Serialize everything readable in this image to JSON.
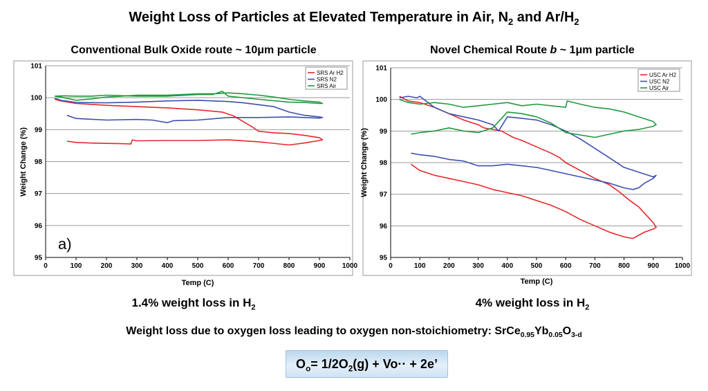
{
  "title": {
    "pre": "Weight Loss of Particles at Elevated Temperature in Air, N",
    "sub1": "2",
    "mid": " and Ar/H",
    "sub2": "2"
  },
  "left_subtitle": "Conventional Bulk Oxide route ~ 10μm particle",
  "right_subtitle": {
    "pre": "Novel Chemical Route ",
    "italic": "b",
    "post": " ~ 1μm particle"
  },
  "left_caption": {
    "text": "1.4% weight loss in H",
    "sub": "2"
  },
  "right_caption": {
    "text": "4% weight loss in H",
    "sub": "2"
  },
  "note": {
    "text": "Weight loss due to oxygen loss leading to oxygen non-stoichiometry: SrCe",
    "s1": "0.95",
    "m1": "Yb",
    "s2": "0.05",
    "m2": "O",
    "s3": "3-d"
  },
  "equation": {
    "p1": "O",
    "s1": "o",
    "p2": "= 1/2O",
    "s2": "2",
    "p3": "(g) + Vo·· + 2e’"
  },
  "chart_data": [
    {
      "type": "line",
      "panel_label": "a)",
      "xlabel": "Temp (C)",
      "ylabel": "Weight Change (%)",
      "xlim": [
        0,
        1000
      ],
      "ylim": [
        95,
        101
      ],
      "xticks": [
        0,
        100,
        200,
        300,
        400,
        500,
        600,
        700,
        800,
        900,
        1000
      ],
      "yticks": [
        95,
        96,
        97,
        98,
        99,
        100,
        101
      ],
      "grid": true,
      "legend_position": "top-right",
      "series": [
        {
          "name": "SRS Ar H2",
          "color": "#e8262b",
          "x": [
            30,
            50,
            100,
            200,
            300,
            400,
            500,
            580,
            620,
            650,
            680,
            700,
            750,
            800,
            850,
            900,
            910,
            900,
            850,
            800,
            700,
            600,
            500,
            400,
            300,
            285,
            280,
            250,
            200,
            150,
            100,
            70
          ],
          "y": [
            99.95,
            99.9,
            99.82,
            99.76,
            99.72,
            99.68,
            99.62,
            99.55,
            99.42,
            99.25,
            99.08,
            98.95,
            98.9,
            98.88,
            98.82,
            98.75,
            98.68,
            98.66,
            98.58,
            98.52,
            98.62,
            98.68,
            98.66,
            98.66,
            98.65,
            98.68,
            98.55,
            98.56,
            98.57,
            98.58,
            98.6,
            98.64
          ]
        },
        {
          "name": "SRS N2",
          "color": "#3b4fae",
          "x": [
            30,
            50,
            100,
            200,
            300,
            400,
            500,
            600,
            650,
            700,
            750,
            800,
            850,
            900,
            910,
            900,
            850,
            800,
            700,
            600,
            500,
            420,
            400,
            350,
            300,
            200,
            100,
            70
          ],
          "y": [
            99.98,
            99.92,
            99.85,
            99.84,
            99.86,
            99.9,
            99.92,
            99.88,
            99.84,
            99.78,
            99.72,
            99.55,
            99.45,
            99.4,
            99.38,
            99.36,
            99.38,
            99.4,
            99.38,
            99.38,
            99.3,
            99.28,
            99.22,
            99.3,
            99.32,
            99.3,
            99.35,
            99.45
          ]
        },
        {
          "name": "SRS Air",
          "color": "#1f9a3c",
          "x": [
            30,
            50,
            100,
            150,
            200,
            250,
            300,
            350,
            400,
            450,
            500,
            550,
            600,
            650,
            700,
            750,
            800,
            850,
            900,
            910,
            900,
            850,
            800,
            700,
            600,
            580,
            550,
            500,
            400,
            300,
            200,
            150,
            100,
            60,
            30
          ],
          "y": [
            100.05,
            100.02,
            99.92,
            99.96,
            100.02,
            100.05,
            100.08,
            100.08,
            100.08,
            100.1,
            100.12,
            100.12,
            100.15,
            100.12,
            100.08,
            100.02,
            99.95,
            99.9,
            99.86,
            99.82,
            99.82,
            99.85,
            99.86,
            99.95,
            100.05,
            100.2,
            100.1,
            100.1,
            100.05,
            100.05,
            100.08,
            100.05,
            100.05,
            100.06,
            100.05
          ]
        }
      ]
    },
    {
      "type": "line",
      "xlabel": "Temp (C)",
      "ylabel": "Weight Change (%)",
      "xlim": [
        0,
        1000
      ],
      "ylim": [
        95,
        101
      ],
      "xticks": [
        0,
        100,
        200,
        300,
        400,
        500,
        600,
        700,
        800,
        900,
        1000
      ],
      "yticks": [
        95,
        96,
        97,
        98,
        99,
        100,
        101
      ],
      "grid": true,
      "legend_position": "top-right",
      "series": [
        {
          "name": "USC Ar H2",
          "color": "#e8262b",
          "x": [
            30,
            60,
            100,
            150,
            200,
            250,
            300,
            320,
            350,
            380,
            400,
            420,
            450,
            500,
            550,
            580,
            600,
            650,
            700,
            750,
            780,
            820,
            850,
            880,
            900,
            910,
            900,
            870,
            850,
            830,
            800,
            750,
            700,
            650,
            600,
            550,
            500,
            450,
            400,
            350,
            300,
            250,
            200,
            150,
            100,
            70
          ],
          "y": [
            100.1,
            99.95,
            99.9,
            99.75,
            99.55,
            99.35,
            99.2,
            99.1,
            99.05,
            99.0,
            98.9,
            98.8,
            98.7,
            98.5,
            98.3,
            98.15,
            98.0,
            97.75,
            97.5,
            97.3,
            97.1,
            96.8,
            96.6,
            96.3,
            96.1,
            95.95,
            95.9,
            95.8,
            95.7,
            95.6,
            95.65,
            95.8,
            96.0,
            96.2,
            96.45,
            96.65,
            96.8,
            96.95,
            97.05,
            97.15,
            97.3,
            97.4,
            97.5,
            97.6,
            97.75,
            97.95
          ]
        },
        {
          "name": "USC N2",
          "color": "#3b4fae",
          "x": [
            30,
            60,
            90,
            100,
            150,
            200,
            250,
            300,
            350,
            370,
            400,
            450,
            500,
            550,
            600,
            650,
            700,
            750,
            800,
            850,
            900,
            910,
            900,
            870,
            850,
            830,
            800,
            750,
            700,
            650,
            600,
            550,
            500,
            450,
            400,
            350,
            300,
            250,
            200,
            150,
            100,
            70
          ],
          "y": [
            100.05,
            100.1,
            100.05,
            100.1,
            99.75,
            99.55,
            99.45,
            99.35,
            99.2,
            99.0,
            99.45,
            99.4,
            99.35,
            99.2,
            99.0,
            98.75,
            98.45,
            98.15,
            97.85,
            97.7,
            97.55,
            97.6,
            97.5,
            97.35,
            97.2,
            97.15,
            97.2,
            97.35,
            97.45,
            97.55,
            97.65,
            97.75,
            97.85,
            97.9,
            97.95,
            97.9,
            97.9,
            98.05,
            98.1,
            98.2,
            98.25,
            98.3
          ]
        },
        {
          "name": "USC Air",
          "color": "#1f9a3c",
          "x": [
            30,
            60,
            100,
            150,
            200,
            250,
            300,
            350,
            400,
            450,
            500,
            550,
            600,
            605,
            650,
            700,
            750,
            800,
            850,
            900,
            910,
            900,
            850,
            800,
            750,
            700,
            600,
            550,
            500,
            450,
            400,
            350,
            300,
            250,
            200,
            150,
            100,
            70
          ],
          "y": [
            100.0,
            99.9,
            99.85,
            99.9,
            99.85,
            99.75,
            99.8,
            99.85,
            99.9,
            99.8,
            99.85,
            99.8,
            99.75,
            99.95,
            99.85,
            99.75,
            99.7,
            99.6,
            99.45,
            99.3,
            99.2,
            99.15,
            99.05,
            99.0,
            98.9,
            98.8,
            98.95,
            99.25,
            99.45,
            99.55,
            99.6,
            99.1,
            98.95,
            99.0,
            99.1,
            99.0,
            98.95,
            98.9
          ]
        }
      ]
    }
  ]
}
